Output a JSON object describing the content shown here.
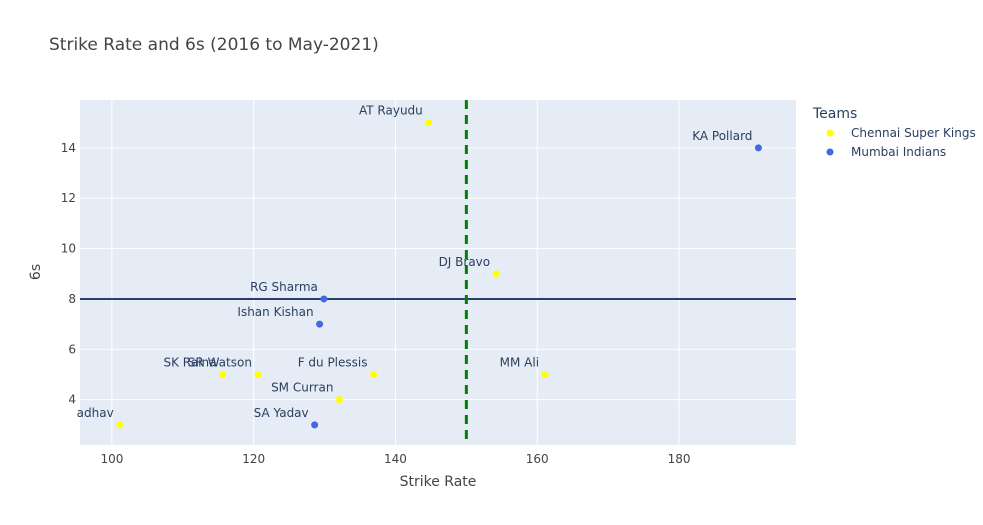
{
  "chart_data": {
    "type": "scatter",
    "title": "Strike Rate and 6s (2016 to May-2021)",
    "xlabel": "Strike Rate",
    "ylabel": "6s",
    "xlim": [
      95.5,
      196.5
    ],
    "ylim": [
      2.2,
      15.9
    ],
    "xticks": [
      100,
      120,
      140,
      160,
      180
    ],
    "yticks": [
      4,
      6,
      8,
      10,
      12,
      14
    ],
    "grid": true,
    "legend": {
      "title": "Teams",
      "placement": "right"
    },
    "series": [
      {
        "name": "Chennai Super Kings",
        "color": "#ffff00",
        "points": [
          {
            "x": 144.7,
            "y": 15,
            "label": "AT Rayudu"
          },
          {
            "x": 154.2,
            "y": 9,
            "label": "DJ Bravo"
          },
          {
            "x": 161.1,
            "y": 5,
            "label": "MM Ali"
          },
          {
            "x": 136.9,
            "y": 5,
            "label": "F du Plessis"
          },
          {
            "x": 132.1,
            "y": 4,
            "label": "SM Curran"
          },
          {
            "x": 120.6,
            "y": 5,
            "label": "SR Watson"
          },
          {
            "x": 115.6,
            "y": 5,
            "label": "SK Raina"
          },
          {
            "x": 101.1,
            "y": 3,
            "label": "adhav"
          }
        ]
      },
      {
        "name": "Mumbai Indians",
        "color": "#4169e1",
        "points": [
          {
            "x": 191.2,
            "y": 14,
            "label": "KA Pollard"
          },
          {
            "x": 129.9,
            "y": 8,
            "label": "RG Sharma"
          },
          {
            "x": 129.3,
            "y": 7,
            "label": "Ishan Kishan"
          },
          {
            "x": 128.6,
            "y": 3,
            "label": "SA Yadav"
          }
        ]
      }
    ],
    "reference_lines": [
      {
        "axis": "y",
        "value": 8,
        "color": "#2a3f6f",
        "style": "solid"
      },
      {
        "axis": "x",
        "value": 150,
        "color": "#008000",
        "style": "dashed"
      }
    ]
  }
}
